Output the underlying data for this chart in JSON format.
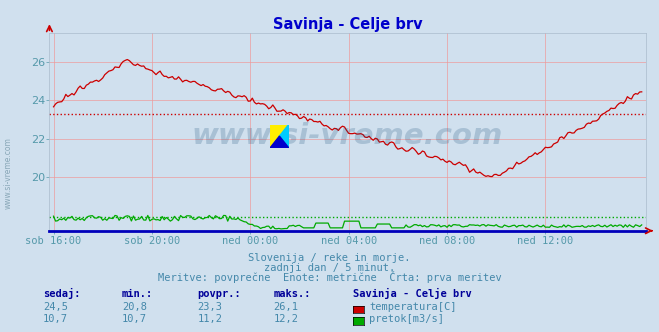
{
  "title": "Savinja - Celje brv",
  "title_color": "#0000cc",
  "bg_color": "#d0e0ee",
  "plot_bg_color": "#d0e0ee",
  "grid_color": "#ee9999",
  "x_label_color": "#5599aa",
  "y_label_color": "#5599aa",
  "x_ticks": [
    "sob 16:00",
    "sob 20:00",
    "ned 00:00",
    "ned 04:00",
    "ned 08:00",
    "ned 12:00"
  ],
  "x_tick_positions": [
    0,
    48,
    96,
    144,
    192,
    240
  ],
  "y_ticks": [
    20,
    22,
    24,
    26
  ],
  "ylim": [
    17.2,
    27.5
  ],
  "xlim": [
    -2,
    289
  ],
  "temp_color": "#cc0000",
  "flow_color": "#00aa00",
  "avg_temp": 23.3,
  "avg_flow_display": 17.9,
  "watermark_text": "www.si-vreme.com",
  "watermark_color": "#1a4f7a",
  "subtitle1": "Slovenija / reke in morje.",
  "subtitle2": "zadnji dan / 5 minut.",
  "subtitle3": "Meritve: povprečne  Enote: metrične  Črta: prva meritev",
  "subtitle_color": "#4488aa",
  "table_header": [
    "sedaj:",
    "min.:",
    "povpr.:",
    "maks.:",
    "Savinja - Celje brv"
  ],
  "table_row1": [
    "24,5",
    "20,8",
    "23,3",
    "26,1",
    "temperatura[C]"
  ],
  "table_row2": [
    "10,7",
    "10,7",
    "11,2",
    "12,2",
    "pretok[m3/s]"
  ],
  "table_color": "#4488aa",
  "table_header_color": "#000099"
}
